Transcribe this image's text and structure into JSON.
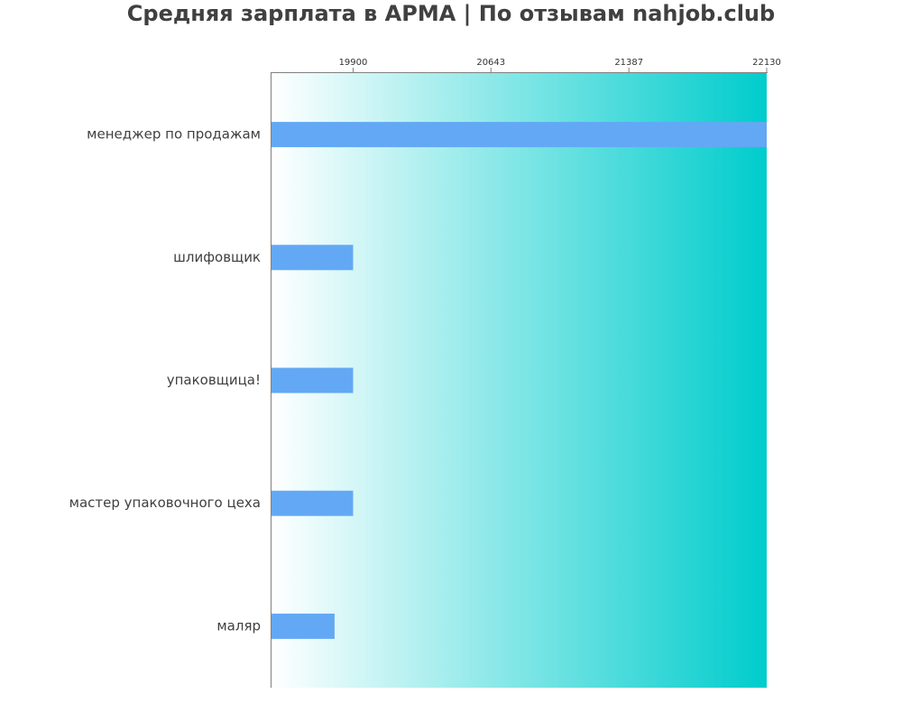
{
  "chart_data": {
    "type": "bar",
    "orientation": "horizontal",
    "title": "Средняя зарплата в АРМА | По отзывам nahjob.club",
    "categories": [
      "менеджер по продажам",
      "шлифовщик",
      "упаковщица!",
      "мастер упаковочного цеха",
      "маляр"
    ],
    "values": [
      22130,
      19900,
      19900,
      19900,
      19800
    ],
    "xticks": [
      19900,
      20643,
      21387,
      22130
    ],
    "xtick_labels": [
      "19900",
      "20643",
      "21387",
      "22130"
    ],
    "xlim": [
      19460,
      22130
    ],
    "xlabel": "",
    "ylabel": "",
    "grid": false,
    "xaxis_position": "top"
  },
  "colors": {
    "bar": "#63a8f4",
    "gradient_start": "#ffffff",
    "gradient_end": "#00cccc",
    "axis": "#808080",
    "title": "#404040",
    "label": "#404040"
  }
}
